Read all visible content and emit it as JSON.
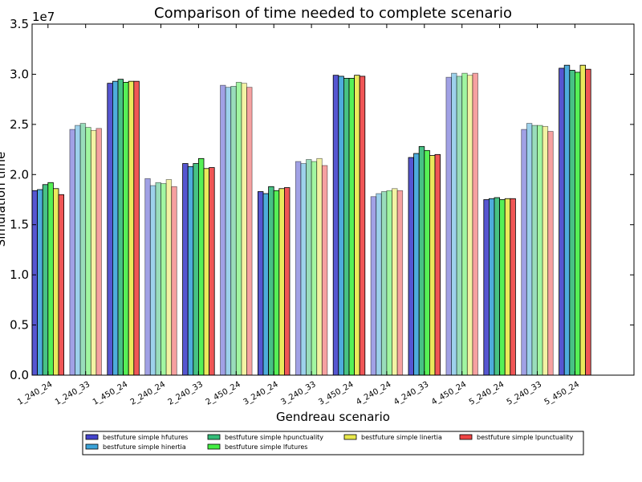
{
  "chart_data": {
    "type": "bar",
    "title": "Comparison of time needed to complete scenario",
    "xlabel": "Gendreau scenario",
    "ylabel": "Simulation time",
    "y_multiplier_label": "1e7",
    "ylim": [
      0,
      3.5
    ],
    "yticks": [
      "0.0",
      "0.5",
      "1.0",
      "1.5",
      "2.0",
      "2.5",
      "3.0",
      "3.5"
    ],
    "grid": false,
    "legend_position": "bottom",
    "categories": [
      "1_240_24",
      "1_240_33",
      "1_450_24",
      "2_240_24",
      "2_240_33",
      "2_450_24",
      "3_240_24",
      "3_240_33",
      "3_450_24",
      "4_240_24",
      "4_240_33",
      "4_450_24",
      "5_240_24",
      "5_240_33",
      "5_450_24"
    ],
    "faded_categories": [
      1,
      3,
      5,
      7,
      9,
      11,
      13
    ],
    "series": [
      {
        "name": "bestfuture simple hfutures",
        "color": "#4444cc",
        "values": [
          1.84,
          2.45,
          2.91,
          1.96,
          2.11,
          2.89,
          1.83,
          2.13,
          2.99,
          1.78,
          2.17,
          2.97,
          1.75,
          2.45,
          3.06
        ]
      },
      {
        "name": "bestfuture simple hinertia",
        "color": "#3ba3d8",
        "values": [
          1.85,
          2.49,
          2.93,
          1.89,
          2.08,
          2.87,
          1.81,
          2.11,
          2.98,
          1.81,
          2.21,
          3.01,
          1.76,
          2.51,
          3.09
        ]
      },
      {
        "name": "bestfuture simple hpunctuality",
        "color": "#33bb77",
        "values": [
          1.9,
          2.51,
          2.95,
          1.92,
          2.11,
          2.88,
          1.88,
          2.15,
          2.96,
          1.83,
          2.28,
          2.98,
          1.77,
          2.49,
          3.04
        ]
      },
      {
        "name": "bestfuture simple lfutures",
        "color": "#44ee44",
        "values": [
          1.92,
          2.47,
          2.92,
          1.91,
          2.16,
          2.92,
          1.84,
          2.13,
          2.96,
          1.84,
          2.24,
          3.01,
          1.75,
          2.49,
          3.02
        ]
      },
      {
        "name": "bestfuture simple linertia",
        "color": "#e8e84a",
        "values": [
          1.86,
          2.44,
          2.93,
          1.95,
          2.06,
          2.91,
          1.86,
          2.16,
          2.99,
          1.86,
          2.19,
          2.99,
          1.76,
          2.48,
          3.09
        ]
      },
      {
        "name": "bestfuture simple lpunctuality",
        "color": "#ee4444",
        "values": [
          1.8,
          2.46,
          2.93,
          1.88,
          2.07,
          2.87,
          1.87,
          2.09,
          2.98,
          1.84,
          2.2,
          3.01,
          1.76,
          2.43,
          3.05
        ]
      }
    ]
  }
}
